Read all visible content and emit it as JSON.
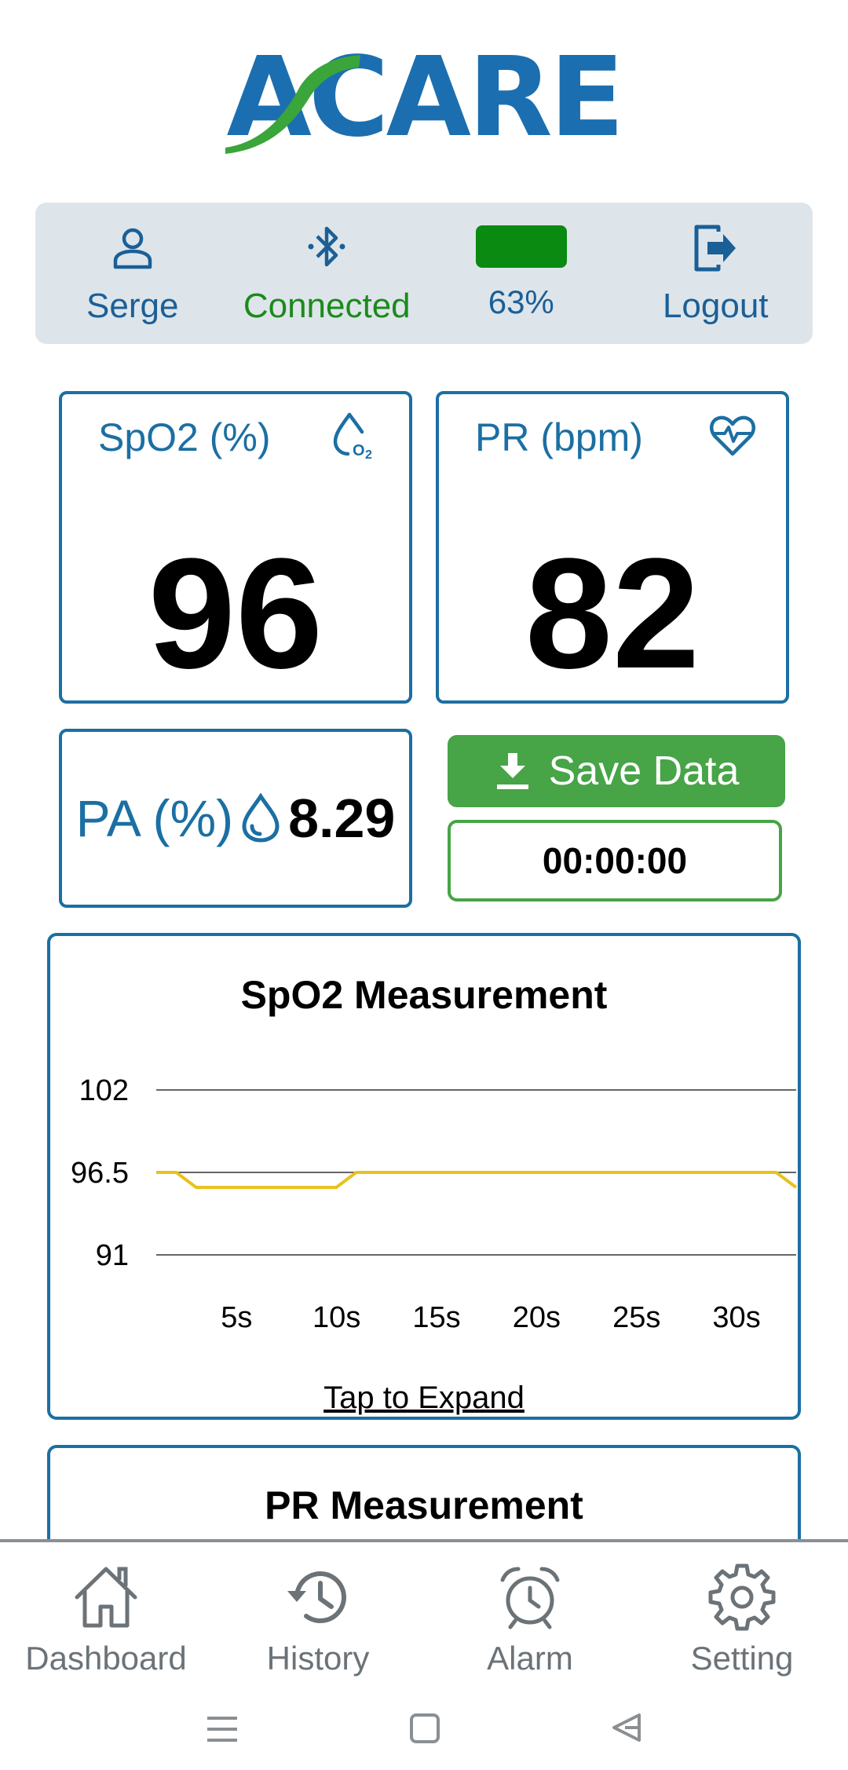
{
  "app": {
    "logo_text": "ACARE"
  },
  "status": {
    "user_name": "Serge",
    "connection": "Connected",
    "battery": "63%",
    "logout": "Logout"
  },
  "vitals": {
    "spo2": {
      "title": "SpO2 (%)",
      "value": "96"
    },
    "pr": {
      "title": "PR (bpm)",
      "value": "82"
    },
    "pa": {
      "title": "PA (%)",
      "value": "8.29"
    }
  },
  "actions": {
    "save_label": "Save Data",
    "timer": "00:00:00"
  },
  "spo2_chart": {
    "title": "SpO2 Measurement",
    "expand_label": "Tap to Expand"
  },
  "pr_chart": {
    "title": "PR Measurement"
  },
  "nav": {
    "items": [
      {
        "label": "Dashboard",
        "icon": "home-icon"
      },
      {
        "label": "History",
        "icon": "history-icon"
      },
      {
        "label": "Alarm",
        "icon": "alarm-clock-icon"
      },
      {
        "label": "Setting",
        "icon": "gear-icon"
      }
    ]
  },
  "colors": {
    "primary": "#1b6fa3",
    "connected": "#1b8a1b",
    "battery": "#0a8a10",
    "save_button": "#47a447",
    "chart_line": "#e8c21c"
  },
  "chart_data": {
    "type": "line",
    "title": "SpO2 Measurement",
    "x_labels": [
      "5s",
      "10s",
      "15s",
      "20s",
      "25s",
      "30s"
    ],
    "y_ticks": [
      102,
      96.5,
      91
    ],
    "ylim": [
      91,
      102
    ],
    "grid": true,
    "series": [
      {
        "color": "#e8c21c",
        "x": [
          0,
          1,
          2,
          3,
          4,
          5,
          6,
          7,
          8,
          9,
          10,
          11,
          12,
          13,
          14,
          15,
          16,
          17,
          18,
          19,
          20,
          21,
          22,
          23,
          24,
          25,
          26,
          27,
          28,
          29,
          30,
          31,
          32
        ],
        "y": [
          96,
          96,
          95,
          95,
          95,
          95,
          95,
          95,
          95,
          95,
          96,
          96,
          96,
          96,
          96,
          96,
          96,
          96,
          96,
          96,
          96,
          96,
          96,
          96,
          96,
          96,
          96,
          96,
          96,
          96,
          96,
          96,
          95
        ]
      }
    ]
  }
}
